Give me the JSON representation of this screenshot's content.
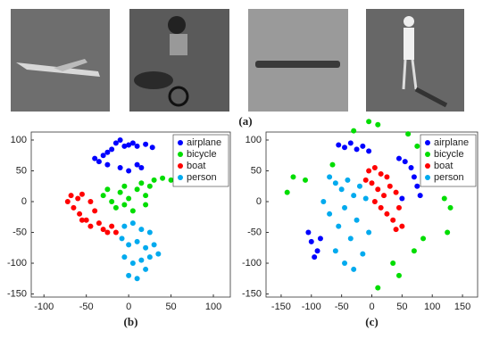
{
  "panel_a": {
    "label": "(a)"
  },
  "chart_data": [
    {
      "type": "scatter",
      "label": "(b)",
      "xlim": [
        -115,
        120
      ],
      "ylim": [
        -155,
        113
      ],
      "xticks": [
        -100,
        -50,
        0,
        50,
        100
      ],
      "yticks": [
        -150,
        -100,
        -50,
        0,
        50,
        100
      ],
      "legend": "top-right",
      "series": [
        {
          "name": "airplane",
          "color": "#0000ff",
          "x": [
            -40,
            -35,
            -30,
            -25,
            -20,
            -15,
            -10,
            -5,
            0,
            5,
            10,
            20,
            28,
            -10,
            0,
            10,
            15,
            -25
          ],
          "y": [
            70,
            65,
            75,
            60,
            85,
            95,
            100,
            90,
            92,
            95,
            90,
            93,
            88,
            55,
            50,
            60,
            55,
            80
          ]
        },
        {
          "name": "bicycle",
          "color": "#00dd00",
          "x": [
            -30,
            -25,
            -20,
            -15,
            -10,
            -5,
            0,
            5,
            10,
            15,
            20,
            25,
            30,
            40,
            50,
            -5,
            20
          ],
          "y": [
            10,
            20,
            0,
            -10,
            15,
            25,
            5,
            -15,
            20,
            30,
            10,
            25,
            35,
            38,
            35,
            -5,
            -5
          ]
        },
        {
          "name": "boat",
          "color": "#ff0000",
          "x": [
            -72,
            -68,
            -60,
            -55,
            -65,
            -58,
            -50,
            -45,
            -40,
            -35,
            -30,
            -25,
            -20,
            -15,
            -45,
            -55
          ],
          "y": [
            0,
            10,
            5,
            12,
            -10,
            -20,
            -30,
            0,
            -15,
            -35,
            -45,
            -50,
            -40,
            -50,
            -40,
            -30
          ]
        },
        {
          "name": "person",
          "color": "#00aaee",
          "x": [
            -5,
            5,
            15,
            25,
            -8,
            0,
            10,
            20,
            30,
            -5,
            5,
            15,
            25,
            35,
            0,
            10,
            20
          ],
          "y": [
            -40,
            -35,
            -45,
            -50,
            -60,
            -70,
            -65,
            -75,
            -70,
            -90,
            -100,
            -95,
            -90,
            -85,
            -120,
            -125,
            -110
          ]
        }
      ]
    },
    {
      "type": "scatter",
      "label": "(c)",
      "xlim": [
        -175,
        175
      ],
      "ylim": [
        -155,
        113
      ],
      "xticks": [
        -150,
        -100,
        -50,
        0,
        50,
        100,
        150
      ],
      "yticks": [
        -150,
        -100,
        -50,
        0,
        50,
        100
      ],
      "legend": "top-right",
      "series": [
        {
          "name": "airplane",
          "color": "#0000ff",
          "x": [
            -55,
            -45,
            -35,
            -25,
            -15,
            -5,
            45,
            55,
            65,
            70,
            75,
            80,
            -105,
            -100,
            -90,
            -85,
            -95,
            50
          ],
          "y": [
            92,
            88,
            95,
            85,
            90,
            82,
            70,
            65,
            55,
            40,
            25,
            10,
            -50,
            -65,
            -80,
            -60,
            -90,
            5
          ]
        },
        {
          "name": "bicycle",
          "color": "#00dd00",
          "x": [
            -5,
            10,
            -130,
            -140,
            -110,
            120,
            130,
            60,
            75,
            85,
            70,
            35,
            10,
            45,
            -30,
            -65,
            125
          ],
          "y": [
            130,
            125,
            40,
            15,
            35,
            5,
            -10,
            110,
            90,
            -60,
            -80,
            -100,
            -140,
            -120,
            115,
            60,
            -50
          ]
        },
        {
          "name": "boat",
          "color": "#ff0000",
          "x": [
            -5,
            5,
            15,
            25,
            0,
            10,
            20,
            30,
            40,
            5,
            15,
            25,
            35,
            45,
            50,
            40,
            -10
          ],
          "y": [
            50,
            55,
            45,
            40,
            30,
            20,
            10,
            25,
            15,
            0,
            -10,
            -20,
            -30,
            -10,
            -40,
            -45,
            35
          ]
        },
        {
          "name": "person",
          "color": "#00aaee",
          "x": [
            -70,
            -60,
            -50,
            -40,
            -30,
            -20,
            -10,
            -80,
            -70,
            -55,
            -45,
            -35,
            -25,
            -60,
            -45,
            -30,
            -15,
            -5
          ],
          "y": [
            40,
            30,
            20,
            35,
            10,
            25,
            5,
            0,
            -20,
            -40,
            -10,
            -60,
            -30,
            -80,
            -100,
            -110,
            -85,
            -50
          ]
        }
      ]
    }
  ]
}
